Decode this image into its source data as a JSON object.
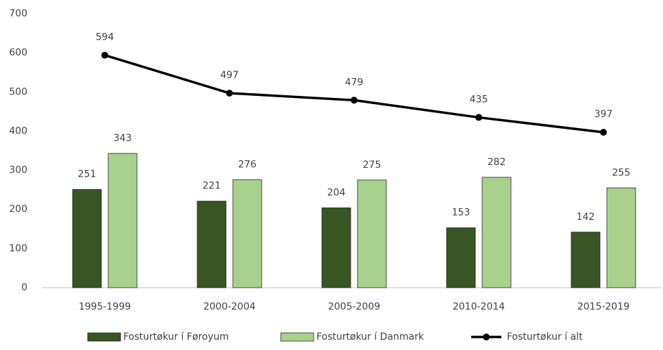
{
  "chart_data": {
    "type": "bar",
    "categories": [
      "1995-1999",
      "2000-2004",
      "2005-2009",
      "2010-2014",
      "2015-2019"
    ],
    "series": [
      {
        "name": "Fosturtøkur í Føroyum",
        "color": "#375623",
        "type": "bar",
        "values": [
          251,
          221,
          204,
          153,
          142
        ]
      },
      {
        "name": "Fosturtøkur í Danmark",
        "color": "#a9d18e",
        "type": "bar",
        "values": [
          343,
          276,
          275,
          282,
          255
        ]
      },
      {
        "name": "Fosturtøkur í alt",
        "color": "#000000",
        "type": "line",
        "values": [
          594,
          497,
          479,
          435,
          397
        ]
      }
    ],
    "ylim": [
      0,
      700
    ],
    "yticks": [
      0,
      100,
      200,
      300,
      400,
      500,
      600,
      700
    ],
    "grid": false,
    "legend": "bottom"
  }
}
